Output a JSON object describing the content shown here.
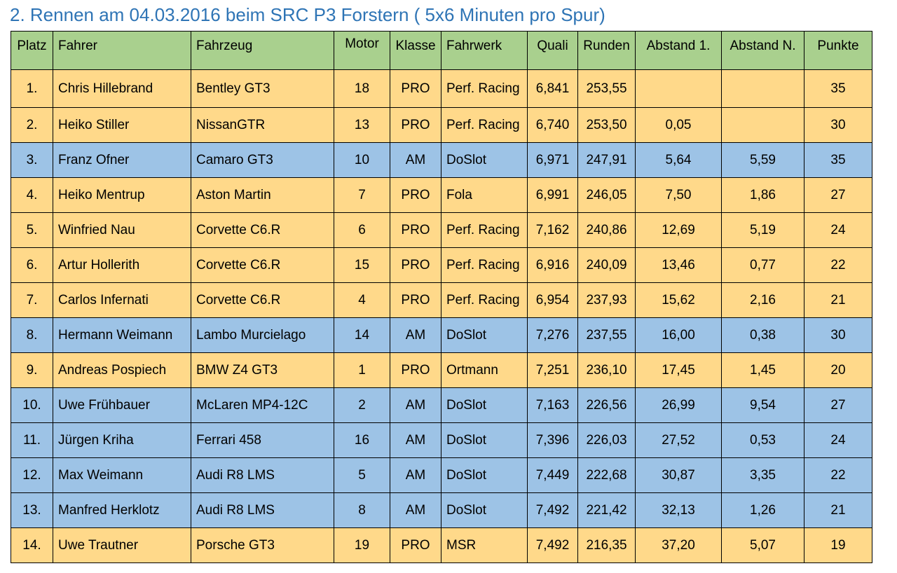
{
  "title": "2. Rennen am 04.03.2016 beim SRC P3 Forstern ( 5x6 Minuten pro Spur)",
  "colors": {
    "title": "#2e74b5",
    "header_bg": "#a9d08e",
    "pro_row_bg": "#ffd98a",
    "am_row_bg": "#9dc3e6"
  },
  "headers": [
    "Platz",
    "Fahrer",
    "Fahrzeug",
    "Motor",
    "Klasse",
    "Fahrwerk",
    "Quali",
    "Runden",
    "Abstand 1.",
    "Abstand N.",
    "Punkte"
  ],
  "rows": [
    {
      "platz": "1.",
      "fahrer": "Chris Hillebrand",
      "fahrzeug": "Bentley GT3",
      "motor": "18",
      "klasse": "PRO",
      "fahrwerk": "Perf. Racing",
      "quali": "6,841",
      "runden": "253,55",
      "abstand1": "",
      "abstandN": "",
      "punkte": "35"
    },
    {
      "platz": "2.",
      "fahrer": "Heiko Stiller",
      "fahrzeug": "NissanGTR",
      "motor": "13",
      "klasse": "PRO",
      "fahrwerk": "Perf. Racing",
      "quali": "6,740",
      "runden": "253,50",
      "abstand1": "0,05",
      "abstandN": "",
      "punkte": "30"
    },
    {
      "platz": "3.",
      "fahrer": "Franz Ofner",
      "fahrzeug": "Camaro GT3",
      "motor": "10",
      "klasse": "AM",
      "fahrwerk": "DoSlot",
      "quali": "6,971",
      "runden": "247,91",
      "abstand1": "5,64",
      "abstandN": "5,59",
      "punkte": "35"
    },
    {
      "platz": "4.",
      "fahrer": "Heiko Mentrup",
      "fahrzeug": "Aston Martin",
      "motor": "7",
      "klasse": "PRO",
      "fahrwerk": "Fola",
      "quali": "6,991",
      "runden": "246,05",
      "abstand1": "7,50",
      "abstandN": "1,86",
      "punkte": "27"
    },
    {
      "platz": "5.",
      "fahrer": "Winfried Nau",
      "fahrzeug": "Corvette C6.R",
      "motor": "6",
      "klasse": "PRO",
      "fahrwerk": "Perf. Racing",
      "quali": "7,162",
      "runden": "240,86",
      "abstand1": "12,69",
      "abstandN": "5,19",
      "punkte": "24"
    },
    {
      "platz": "6.",
      "fahrer": "Artur Hollerith",
      "fahrzeug": "Corvette C6.R",
      "motor": "15",
      "klasse": "PRO",
      "fahrwerk": "Perf. Racing",
      "quali": "6,916",
      "runden": "240,09",
      "abstand1": "13,46",
      "abstandN": "0,77",
      "punkte": "22"
    },
    {
      "platz": "7.",
      "fahrer": "Carlos Infernati",
      "fahrzeug": "Corvette C6.R",
      "motor": "4",
      "klasse": "PRO",
      "fahrwerk": "Perf. Racing",
      "quali": "6,954",
      "runden": "237,93",
      "abstand1": "15,62",
      "abstandN": "2,16",
      "punkte": "21"
    },
    {
      "platz": "8.",
      "fahrer": "Hermann Weimann",
      "fahrzeug": "Lambo Murcielago",
      "motor": "14",
      "klasse": "AM",
      "fahrwerk": "DoSlot",
      "quali": "7,276",
      "runden": "237,55",
      "abstand1": "16,00",
      "abstandN": "0,38",
      "punkte": "30"
    },
    {
      "platz": "9.",
      "fahrer": "Andreas Pospiech",
      "fahrzeug": "BMW Z4 GT3",
      "motor": "1",
      "klasse": "PRO",
      "fahrwerk": "Ortmann",
      "quali": "7,251",
      "runden": "236,10",
      "abstand1": "17,45",
      "abstandN": "1,45",
      "punkte": "20"
    },
    {
      "platz": "10.",
      "fahrer": "Uwe Frühbauer",
      "fahrzeug": "McLaren MP4-12C",
      "motor": "2",
      "klasse": "AM",
      "fahrwerk": "DoSlot",
      "quali": "7,163",
      "runden": "226,56",
      "abstand1": "26,99",
      "abstandN": "9,54",
      "punkte": "27"
    },
    {
      "platz": "11.",
      "fahrer": "Jürgen Kriha",
      "fahrzeug": "Ferrari 458",
      "motor": "16",
      "klasse": "AM",
      "fahrwerk": "DoSlot",
      "quali": "7,396",
      "runden": "226,03",
      "abstand1": "27,52",
      "abstandN": "0,53",
      "punkte": "24"
    },
    {
      "platz": "12.",
      "fahrer": "Max Weimann",
      "fahrzeug": "Audi R8 LMS",
      "motor": "5",
      "klasse": "AM",
      "fahrwerk": "DoSlot",
      "quali": "7,449",
      "runden": "222,68",
      "abstand1": "30,87",
      "abstandN": "3,35",
      "punkte": "22"
    },
    {
      "platz": "13.",
      "fahrer": "Manfred Herklotz",
      "fahrzeug": "Audi R8 LMS",
      "motor": "8",
      "klasse": "AM",
      "fahrwerk": "DoSlot",
      "quali": "7,492",
      "runden": "221,42",
      "abstand1": "32,13",
      "abstandN": "1,26",
      "punkte": "21"
    },
    {
      "platz": "14.",
      "fahrer": "Uwe Trautner",
      "fahrzeug": "Porsche GT3",
      "motor": "19",
      "klasse": "PRO",
      "fahrwerk": "MSR",
      "quali": "7,492",
      "runden": "216,35",
      "abstand1": "37,20",
      "abstandN": "5,07",
      "punkte": "19"
    }
  ]
}
